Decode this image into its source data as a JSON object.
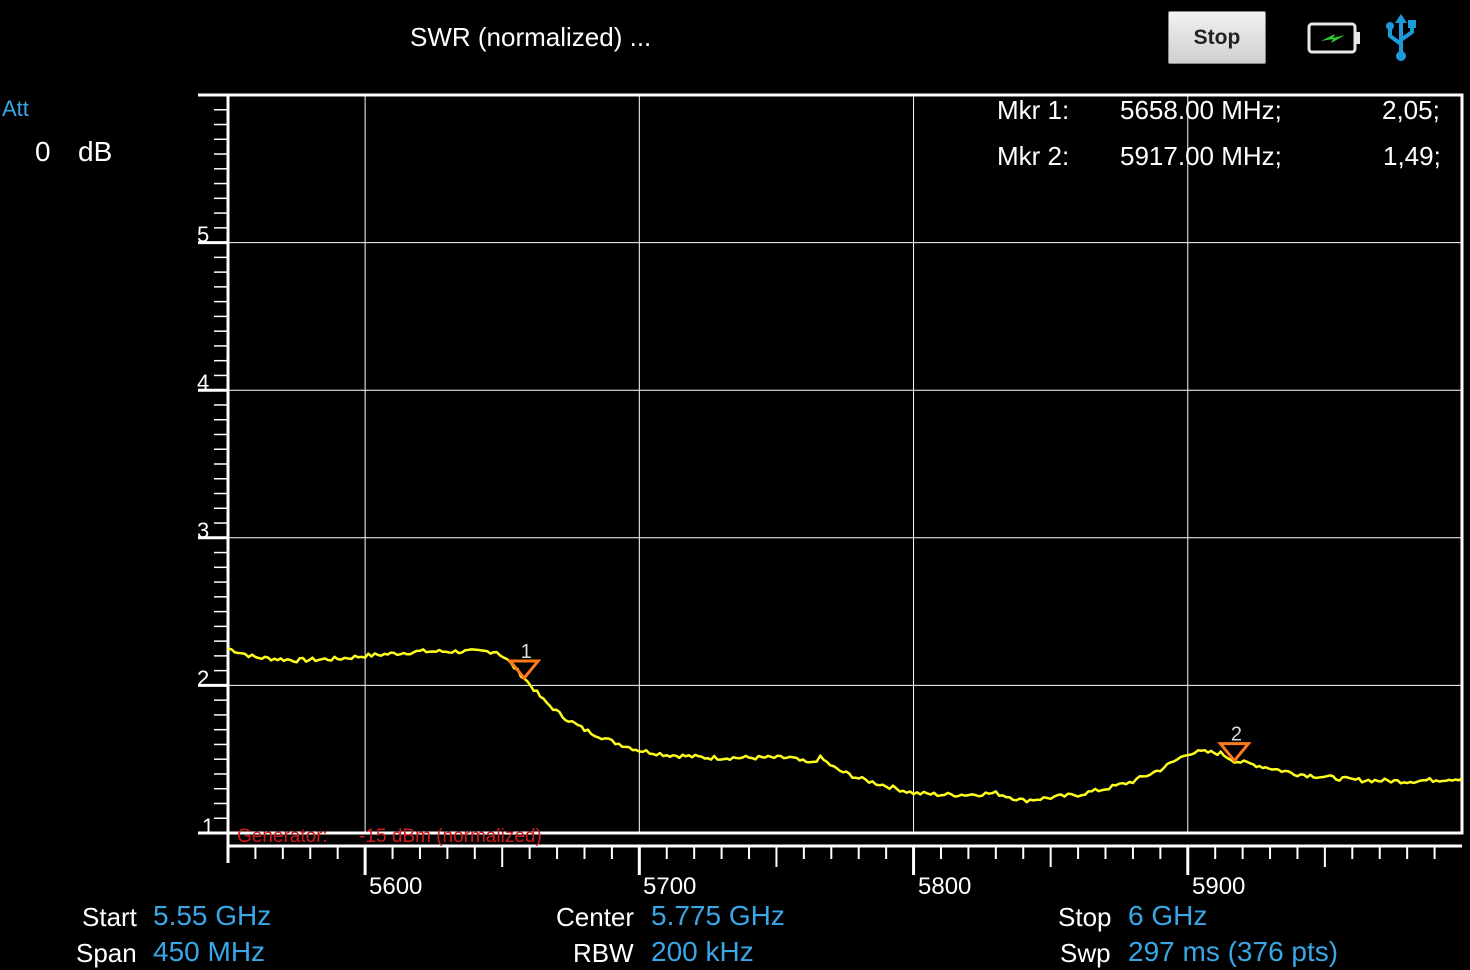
{
  "header": {
    "title": "SWR (normalized) ...",
    "stop_button": "Stop",
    "battery_icon": "battery-charging-icon",
    "usb_icon": "usb-icon"
  },
  "attenuation": {
    "label": "Att",
    "value": "0",
    "unit": "dB"
  },
  "markers": [
    {
      "name": "Mkr 1:",
      "freq": "5658.00 MHz;",
      "value": "2,05;",
      "id": "1"
    },
    {
      "name": "Mkr 2:",
      "freq": "5917.00 MHz;",
      "value": "1,49;",
      "id": "2"
    }
  ],
  "generator": {
    "label": "Generator:",
    "value": "-15 dBm (normalized)"
  },
  "footer": {
    "start_label": "Start",
    "start_value": "5.55 GHz",
    "span_label": "Span",
    "span_value": "450 MHz",
    "center_label": "Center",
    "center_value": "5.775 GHz",
    "rbw_label": "RBW",
    "rbw_value": "200 kHz",
    "stop_label": "Stop",
    "stop_value": "6 GHz",
    "swp_label": "Swp",
    "swp_value": "297  ms (376 pts)"
  },
  "colors": {
    "trace": "#ffff1e",
    "marker": "#ff7a1a",
    "accent": "#39a7e6",
    "generator": "#d21a1a"
  },
  "chart_data": {
    "type": "line",
    "xlim": [
      5550,
      6000
    ],
    "ylim": [
      1,
      6
    ],
    "x_ticks": [
      "5600",
      "5700",
      "5800",
      "5900"
    ],
    "y_ticks": [
      "1",
      "2",
      "3",
      "4",
      "5"
    ],
    "grid": true,
    "series": [
      {
        "x": [
          5550,
          5560,
          5575,
          5590,
          5600,
          5620,
          5640,
          5648,
          5652,
          5658,
          5665,
          5672,
          5680,
          5690,
          5700,
          5710,
          5725,
          5740,
          5755,
          5762,
          5766,
          5772,
          5780,
          5790,
          5800,
          5810,
          5820,
          5830,
          5840,
          5850,
          5860,
          5870,
          5880,
          5890,
          5900,
          5905,
          5912,
          5917,
          5925,
          5940,
          5960,
          5980,
          6000
        ],
        "y": [
          2.25,
          2.19,
          2.17,
          2.18,
          2.2,
          2.23,
          2.23,
          2.23,
          2.17,
          2.05,
          1.9,
          1.79,
          1.7,
          1.62,
          1.56,
          1.53,
          1.51,
          1.51,
          1.51,
          1.47,
          1.51,
          1.43,
          1.37,
          1.32,
          1.27,
          1.26,
          1.26,
          1.27,
          1.22,
          1.24,
          1.26,
          1.3,
          1.35,
          1.43,
          1.54,
          1.55,
          1.54,
          1.49,
          1.46,
          1.4,
          1.36,
          1.35,
          1.37
        ]
      }
    ],
    "markers": [
      {
        "label": "1",
        "x": 5658,
        "y": 2.05
      },
      {
        "label": "2",
        "x": 5917,
        "y": 1.49
      }
    ]
  }
}
